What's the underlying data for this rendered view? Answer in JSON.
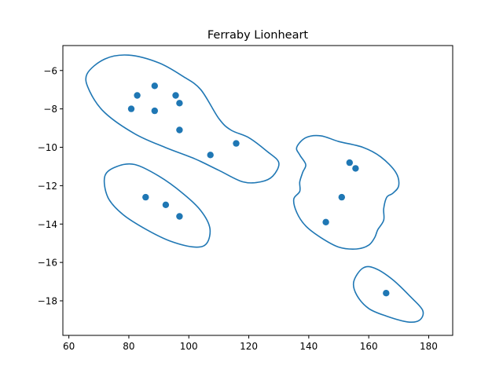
{
  "chart_data": {
    "type": "scatter",
    "title": "Ferraby Lionheart",
    "xlabel": "",
    "ylabel": "",
    "xlim": [
      58,
      188
    ],
    "ylim": [
      -19.8,
      -4.7
    ],
    "x_ticks": [
      60,
      80,
      100,
      120,
      140,
      160,
      180
    ],
    "y_ticks": [
      -6,
      -8,
      -10,
      -12,
      -14,
      -16,
      -18
    ],
    "grid": false,
    "color": "#1f77b4",
    "points": [
      {
        "x": 80.8,
        "y": -8.0
      },
      {
        "x": 82.8,
        "y": -7.3
      },
      {
        "x": 88.6,
        "y": -6.8
      },
      {
        "x": 88.6,
        "y": -8.1
      },
      {
        "x": 95.6,
        "y": -7.3
      },
      {
        "x": 96.9,
        "y": -7.7
      },
      {
        "x": 96.9,
        "y": -9.1
      },
      {
        "x": 107.2,
        "y": -10.4
      },
      {
        "x": 115.8,
        "y": -9.8
      },
      {
        "x": 85.6,
        "y": -12.6
      },
      {
        "x": 92.3,
        "y": -13.0
      },
      {
        "x": 96.9,
        "y": -13.6
      },
      {
        "x": 153.6,
        "y": -10.8
      },
      {
        "x": 155.6,
        "y": -11.1
      },
      {
        "x": 151.0,
        "y": -12.6
      },
      {
        "x": 145.7,
        "y": -13.9
      },
      {
        "x": 165.8,
        "y": -17.6
      }
    ],
    "clusters": [
      {
        "path": [
          [
            66,
            -6.2
          ],
          [
            72,
            -5.4
          ],
          [
            80,
            -5.2
          ],
          [
            90,
            -5.6
          ],
          [
            98,
            -6.3
          ],
          [
            104,
            -7.0
          ],
          [
            110,
            -8.5
          ],
          [
            114,
            -9.1
          ],
          [
            120,
            -9.5
          ],
          [
            126,
            -10.2
          ],
          [
            130,
            -10.8
          ],
          [
            128,
            -11.5
          ],
          [
            124,
            -11.8
          ],
          [
            118,
            -11.8
          ],
          [
            110,
            -11.2
          ],
          [
            102,
            -10.6
          ],
          [
            92,
            -10.0
          ],
          [
            82,
            -9.3
          ],
          [
            72,
            -8.2
          ],
          [
            67,
            -7.1
          ]
        ]
      },
      {
        "path": [
          [
            72,
            -11.5
          ],
          [
            76,
            -11.0
          ],
          [
            82,
            -10.9
          ],
          [
            90,
            -11.5
          ],
          [
            98,
            -12.4
          ],
          [
            104,
            -13.3
          ],
          [
            107,
            -14.2
          ],
          [
            106,
            -15.0
          ],
          [
            102,
            -15.2
          ],
          [
            94,
            -14.9
          ],
          [
            86,
            -14.3
          ],
          [
            78,
            -13.5
          ],
          [
            73,
            -12.6
          ]
        ]
      },
      {
        "path": [
          [
            136,
            -10.0
          ],
          [
            139,
            -9.5
          ],
          [
            144,
            -9.4
          ],
          [
            150,
            -9.7
          ],
          [
            158,
            -10.0
          ],
          [
            164,
            -10.5
          ],
          [
            169,
            -11.3
          ],
          [
            170,
            -12.0
          ],
          [
            168,
            -12.4
          ],
          [
            166,
            -12.6
          ],
          [
            165,
            -13.2
          ],
          [
            165,
            -13.8
          ],
          [
            163,
            -14.3
          ],
          [
            162,
            -14.7
          ],
          [
            160,
            -15.1
          ],
          [
            156,
            -15.3
          ],
          [
            150,
            -15.2
          ],
          [
            144,
            -14.7
          ],
          [
            139,
            -14.1
          ],
          [
            136,
            -13.4
          ],
          [
            135,
            -12.7
          ],
          [
            137,
            -12.3
          ],
          [
            137,
            -11.8
          ],
          [
            138,
            -11.3
          ],
          [
            139,
            -10.9
          ],
          [
            137,
            -10.4
          ]
        ]
      },
      {
        "path": [
          [
            155,
            -17.0
          ],
          [
            158,
            -16.3
          ],
          [
            162,
            -16.3
          ],
          [
            168,
            -16.9
          ],
          [
            174,
            -17.8
          ],
          [
            178,
            -18.5
          ],
          [
            177,
            -19.0
          ],
          [
            173,
            -19.1
          ],
          [
            166,
            -18.8
          ],
          [
            160,
            -18.4
          ],
          [
            156,
            -17.7
          ]
        ]
      }
    ]
  }
}
